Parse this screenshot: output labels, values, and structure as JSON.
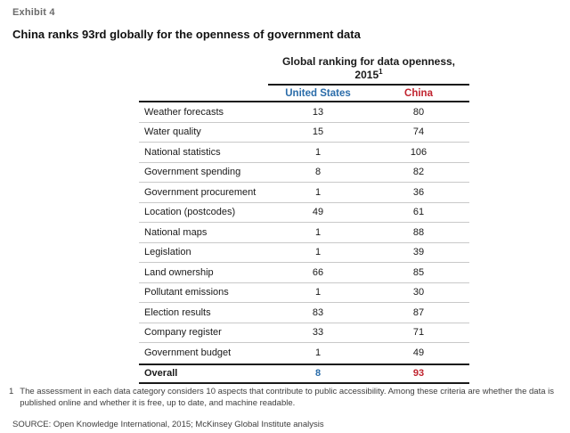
{
  "exhibit": {
    "label": "Exhibit 4",
    "title": "China ranks 93rd globally for the openness of government data"
  },
  "table": {
    "header": {
      "title": "Global ranking for data openness, 2015",
      "title_superscript": "1",
      "columns": [
        "United States",
        "China"
      ]
    },
    "rows": [
      {
        "label": "Weather forecasts",
        "us": "13",
        "china": "80"
      },
      {
        "label": "Water quality",
        "us": "15",
        "china": "74"
      },
      {
        "label": "National statistics",
        "us": "1",
        "china": "106"
      },
      {
        "label": "Government spending",
        "us": "8",
        "china": "82"
      },
      {
        "label": "Government procurement",
        "us": "1",
        "china": "36"
      },
      {
        "label": "Location (postcodes)",
        "us": "49",
        "china": "61"
      },
      {
        "label": "National maps",
        "us": "1",
        "china": "88"
      },
      {
        "label": "Legislation",
        "us": "1",
        "china": "39"
      },
      {
        "label": "Land ownership",
        "us": "66",
        "china": "85"
      },
      {
        "label": "Pollutant emissions",
        "us": "1",
        "china": "30"
      },
      {
        "label": "Election results",
        "us": "83",
        "china": "87"
      },
      {
        "label": "Company register",
        "us": "33",
        "china": "71"
      },
      {
        "label": "Government budget",
        "us": "1",
        "china": "49"
      }
    ],
    "overall": {
      "label": "Overall",
      "us": "8",
      "china": "93"
    }
  },
  "footnote": {
    "marker": "1",
    "text": "The assessment in each data category considers 10 aspects that contribute to public accessibility. Among these criteria are whether the data is published online and whether it is free, up to date, and machine readable."
  },
  "source": "SOURCE: Open Knowledge International, 2015; McKinsey Global Institute analysis",
  "colors": {
    "us_accent": "#2A6CA9",
    "china_accent": "#C0232E",
    "rule_dark": "#1A1A1A",
    "rule_light": "#C9C9C9",
    "muted_text": "#6B6B6B"
  },
  "chart_data": {
    "type": "table",
    "title": "Global ranking for data openness, 2015",
    "title_note": "China ranks 93rd globally for the openness of government data",
    "categories": [
      "Weather forecasts",
      "Water quality",
      "National statistics",
      "Government spending",
      "Government procurement",
      "Location (postcodes)",
      "National maps",
      "Legislation",
      "Land ownership",
      "Pollutant emissions",
      "Election results",
      "Company register",
      "Government budget"
    ],
    "series": [
      {
        "name": "United States",
        "values": [
          13,
          15,
          1,
          8,
          1,
          49,
          1,
          1,
          66,
          1,
          83,
          33,
          1
        ]
      },
      {
        "name": "China",
        "values": [
          80,
          74,
          106,
          82,
          36,
          61,
          88,
          39,
          85,
          30,
          87,
          71,
          49
        ]
      }
    ],
    "overall": {
      "United States": 8,
      "China": 93
    }
  }
}
